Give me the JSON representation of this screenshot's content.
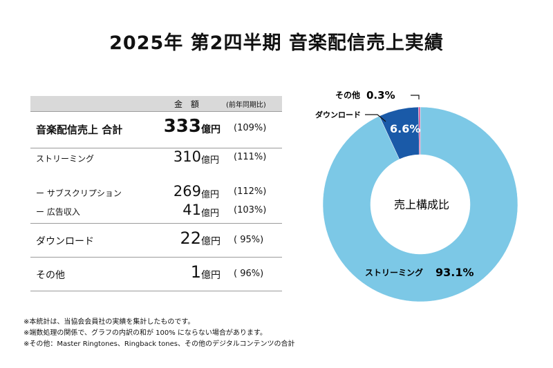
{
  "title": "2025年 第2四半期 音楽配信売上実績",
  "table": {
    "header_amount": "金 額",
    "header_yoy": "(前年同期比)",
    "total": {
      "label": "音楽配信売上 合計",
      "value": "333",
      "unit": "億円",
      "yoy": "(109%)"
    },
    "streaming": {
      "label": "ストリーミング",
      "value": "310",
      "unit": "億円",
      "yoy": "(111%)"
    },
    "subscription": {
      "label": "ー サブスクリプション",
      "value": "269",
      "unit": "億円",
      "yoy": "(112%)"
    },
    "ad_revenue": {
      "label": "ー 広告収入",
      "value": "41",
      "unit": "億円",
      "yoy": "(103%)"
    },
    "download": {
      "label": "ダウンロード",
      "value": "22",
      "unit": "億円",
      "yoy": "( 95%)"
    },
    "other": {
      "label": "その他",
      "value": "1",
      "unit": "億円",
      "yoy": "( 96%)"
    }
  },
  "chart_data": {
    "type": "pie",
    "title": "",
    "center_label": "売上構成比",
    "slices": [
      {
        "label": "ストリーミング",
        "value": 93.1,
        "value_text": "93.1%",
        "color": "#7cc8e6"
      },
      {
        "label": "ダウンロード",
        "value": 6.6,
        "value_text": "6.6%",
        "color": "#1a5aa8"
      },
      {
        "label": "その他",
        "value": 0.3,
        "value_text": "0.3%",
        "color": "#d6589a"
      }
    ]
  },
  "notes": [
    "※本統計は、当協会会員社の実績を集計したものです。",
    "※端数処理の関係で、グラフの内訳の和が 100% にならない場合があります。",
    "※その他：Master Ringtones、Ringback tones、その他のデジタルコンテンツの合計"
  ]
}
